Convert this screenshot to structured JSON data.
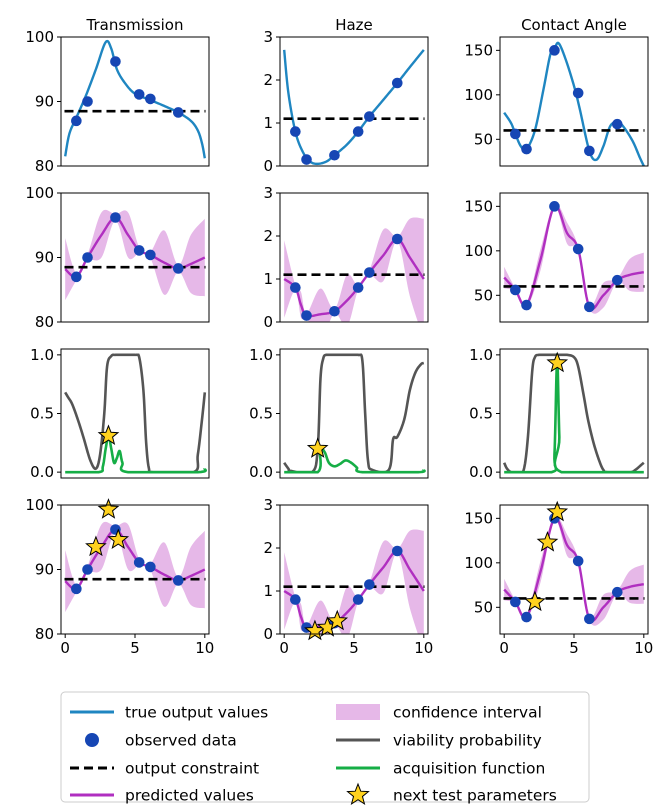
{
  "colors": {
    "true_output": "#1f86c1",
    "observed": "#1646b4",
    "constraint": "#000000",
    "predicted": "#b02fc0",
    "confidence": "#e6b8e8",
    "viability": "#555555",
    "acquisition": "#16ae46",
    "star_fill": "#ffd21f",
    "star_edge": "#000000"
  },
  "legend": {
    "true_output": "true output values",
    "observed": "observed data",
    "constraint": "output constraint",
    "predicted": "predicted values",
    "confidence": "confidence interval",
    "viability": "viability probability",
    "acquisition": "acquisition function",
    "next_test": "next test parameters"
  },
  "chart_data": {
    "type": "line",
    "columns": [
      "Transmission",
      "Haze",
      "Contact Angle"
    ],
    "x_domain": [
      -0.3,
      10.3
    ],
    "xticks": [
      0,
      5,
      10
    ],
    "observed_x": [
      0.8,
      1.6,
      3.6,
      5.3,
      6.1,
      8.1
    ],
    "next_test_x": [
      2.2,
      3.1,
      3.8
    ],
    "outputs": [
      {
        "name": "Transmission",
        "ylim": [
          80,
          100
        ],
        "yticks": [
          80,
          90,
          100
        ],
        "constraint": 88.5,
        "observed_y": [
          87,
          90,
          96.2,
          91.1,
          90.4,
          88.3
        ],
        "true_curve": {
          "x": [
            0,
            0.3,
            0.8,
            1.5,
            2.2,
            2.9,
            3.3,
            3.7,
            4.3,
            5.0,
            6.0,
            7.0,
            8.1,
            9.0,
            9.5,
            9.8,
            10
          ],
          "y": [
            81.5,
            85,
            87.5,
            91,
            95,
            99.2,
            98.2,
            95,
            92.8,
            91.2,
            90.3,
            89.4,
            88.3,
            87,
            85.5,
            83.5,
            81.2
          ]
        },
        "predicted": {
          "x": [
            0,
            0.8,
            1.6,
            2.6,
            3.6,
            4.5,
            5.3,
            6.1,
            7.1,
            8.1,
            9.0,
            10
          ],
          "y": [
            88.2,
            87,
            90,
            93.5,
            96.2,
            93.5,
            91.1,
            90.4,
            89.2,
            88.3,
            89,
            90
          ]
        },
        "ci_half": [
          4.8,
          0.5,
          0.5,
          3.5,
          0.5,
          3.5,
          0.5,
          0.5,
          5.0,
          0.5,
          4.5,
          6.0
        ],
        "next_test_y": [
          93.5,
          99.3,
          94.6
        ]
      },
      {
        "name": "Haze",
        "ylim": [
          0,
          3
        ],
        "yticks": [
          0,
          1,
          2,
          3
        ],
        "constraint": 1.1,
        "observed_y": [
          0.8,
          0.15,
          0.25,
          0.8,
          1.15,
          1.93
        ],
        "true_curve": {
          "x": [
            0,
            0.3,
            0.8,
            1.3,
            1.8,
            2.3,
            3.0,
            3.6,
            4.5,
            5.3,
            6.1,
            7.0,
            8.1,
            9.0,
            10
          ],
          "y": [
            2.7,
            1.7,
            0.8,
            0.35,
            0.12,
            0.05,
            0.1,
            0.25,
            0.5,
            0.8,
            1.15,
            1.5,
            1.93,
            2.3,
            2.7
          ]
        },
        "predicted": {
          "x": [
            0,
            0.8,
            1.2,
            1.6,
            2.6,
            3.6,
            4.5,
            5.3,
            6.1,
            7.1,
            8.1,
            9.0,
            10
          ],
          "y": [
            1.0,
            0.8,
            0.4,
            0.15,
            0.18,
            0.25,
            0.5,
            0.8,
            1.15,
            1.55,
            1.93,
            1.5,
            1.0
          ]
        },
        "ci_half": [
          0.9,
          0.05,
          0.3,
          0.05,
          0.6,
          0.05,
          0.6,
          0.05,
          0.05,
          0.6,
          0.05,
          0.9,
          1.4
        ],
        "next_test_y": [
          0.07,
          0.15,
          0.3
        ]
      },
      {
        "name": "Contact Angle",
        "ylim": [
          20,
          165
        ],
        "yticks": [
          50,
          100,
          150
        ],
        "constraint": 60,
        "observed_y": [
          56,
          39,
          150,
          102,
          37,
          67
        ],
        "true_curve": {
          "x": [
            0,
            0.5,
            0.8,
            1.2,
            1.6,
            2.2,
            2.8,
            3.3,
            3.6,
            3.9,
            4.4,
            5.0,
            5.4,
            6.1,
            6.6,
            7.1,
            7.6,
            8.1,
            8.5,
            9.2,
            9.7,
            10
          ],
          "y": [
            80,
            68,
            56,
            42,
            39,
            60,
            105,
            145,
            152,
            158,
            140,
            110,
            85,
            37,
            27,
            42,
            65,
            69,
            65,
            48,
            30,
            20
          ]
        },
        "predicted": {
          "x": [
            0,
            0.8,
            1.6,
            2.6,
            3.6,
            4.5,
            5.3,
            6.1,
            7.1,
            8.1,
            9.0,
            10
          ],
          "y": [
            70,
            56,
            39,
            90,
            150,
            120,
            102,
            37,
            50,
            67,
            73,
            76
          ]
        },
        "ci_half": [
          12,
          2,
          2,
          12,
          2,
          12,
          2,
          2,
          14,
          2,
          18,
          22
        ],
        "next_test_y": [
          56,
          123,
          157
        ]
      }
    ],
    "viability": {
      "ylim": [
        -0.05,
        1.05
      ],
      "yticks": [
        0.0,
        0.5,
        1.0
      ],
      "ytick_labels": [
        "0.0",
        "0.5",
        "1.0"
      ],
      "curves": [
        {
          "x": [
            0,
            0.2,
            0.5,
            0.9,
            1.3,
            1.8,
            2.2,
            2.5,
            2.8,
            3.0,
            3.3,
            3.6,
            4.0,
            4.5,
            5.0,
            5.3,
            5.6,
            5.8,
            6.0,
            6.3,
            9.2,
            9.5,
            9.8,
            10
          ],
          "y": [
            0.68,
            0.64,
            0.58,
            0.45,
            0.3,
            0.1,
            0.03,
            0.15,
            0.5,
            0.9,
            0.99,
            1.0,
            1.0,
            1.0,
            1.0,
            0.98,
            0.7,
            0.25,
            0.03,
            0.0,
            0.0,
            0.15,
            0.45,
            0.68
          ]
        },
        {
          "x": [
            0,
            0.3,
            0.5,
            2.0,
            2.4,
            2.6,
            2.8,
            3.0,
            3.3,
            3.6,
            4.5,
            5.3,
            5.6,
            5.8,
            6.0,
            6.3,
            7.5,
            7.8,
            8.1,
            8.6,
            9.0,
            9.4,
            9.8,
            10
          ],
          "y": [
            0.08,
            0.03,
            0.01,
            0.0,
            0.2,
            0.8,
            0.97,
            1.0,
            1.0,
            1.0,
            1.0,
            1.0,
            0.95,
            0.5,
            0.1,
            0.02,
            0.02,
            0.28,
            0.3,
            0.45,
            0.7,
            0.85,
            0.92,
            0.93
          ]
        },
        {
          "x": [
            0,
            0.2,
            0.5,
            1.0,
            1.4,
            1.7,
            2.0,
            2.2,
            2.5,
            3.0,
            3.5,
            4.0,
            4.5,
            5.0,
            5.3,
            5.7,
            6.0,
            6.4,
            6.8,
            7.1,
            7.4,
            9.0,
            9.4,
            9.8,
            10
          ],
          "y": [
            0.08,
            0.03,
            0.0,
            0.0,
            0.02,
            0.3,
            0.85,
            0.98,
            1.0,
            1.0,
            1.0,
            1.0,
            1.0,
            0.98,
            0.9,
            0.65,
            0.45,
            0.25,
            0.1,
            0.02,
            0.0,
            0.0,
            0.02,
            0.06,
            0.08
          ]
        }
      ]
    },
    "acquisition": {
      "curves": [
        {
          "x": [
            0,
            2.4,
            2.7,
            2.9,
            3.1,
            3.3,
            3.5,
            3.7,
            3.9,
            4.1,
            4.5,
            9.5,
            10
          ],
          "y": [
            0.0,
            0.0,
            0.05,
            0.2,
            0.31,
            0.2,
            0.08,
            0.12,
            0.18,
            0.08,
            0.0,
            0.0,
            0.03
          ]
        },
        {
          "x": [
            0,
            2.4,
            2.55,
            2.9,
            3.2,
            3.6,
            4.0,
            4.4,
            4.8,
            5.2,
            5.6,
            9.6,
            10
          ],
          "y": [
            0.0,
            0.0,
            0.2,
            0.17,
            0.08,
            0.05,
            0.07,
            0.1,
            0.08,
            0.04,
            0.0,
            0.0,
            0.02
          ]
        },
        {
          "x": [
            0,
            3.4,
            3.6,
            3.75,
            3.82,
            3.95,
            4.1,
            10
          ],
          "y": [
            0.0,
            0.0,
            0.15,
            0.85,
            0.93,
            0.3,
            0.0,
            0.0
          ]
        }
      ],
      "star_points": [
        [
          3.1,
          0.31
        ],
        [
          2.4,
          0.2
        ],
        [
          3.8,
          0.93
        ]
      ]
    }
  }
}
